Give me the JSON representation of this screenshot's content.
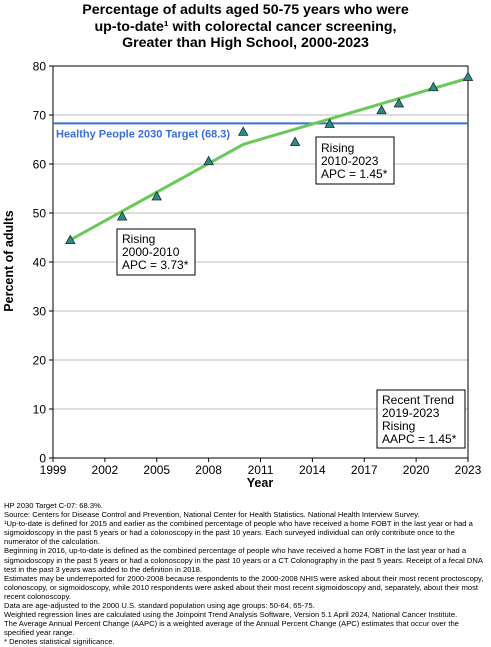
{
  "chart_data": {
    "type": "line",
    "title": [
      "Percentage of adults aged 50-75 years who were",
      "up-to-date¹ with colorectal cancer screening,",
      "Greater than High School,  2000-2023"
    ],
    "xlabel": "Year",
    "ylabel": "Percent of adults",
    "xlim": [
      1999,
      2023
    ],
    "ylim": [
      0,
      80
    ],
    "xticks": [
      1999,
      2002,
      2005,
      2008,
      2011,
      2014,
      2017,
      2020,
      2023
    ],
    "yticks": [
      0,
      10,
      20,
      30,
      40,
      50,
      60,
      70,
      80
    ],
    "grid": true,
    "observed": {
      "x": [
        2000,
        2003,
        2005,
        2008,
        2010,
        2013,
        2015,
        2018,
        2019,
        2021,
        2023
      ],
      "y": [
        44.5,
        49.3,
        53.4,
        60.6,
        66.6,
        64.5,
        68.2,
        71.0,
        72.4,
        75.7,
        77.8
      ]
    },
    "trend": {
      "x": [
        2000,
        2010,
        2023
      ],
      "y": [
        44.5,
        64.0,
        77.5
      ]
    },
    "target": {
      "value": 68.3,
      "label": "Healthy People 2030 Target (68.3)"
    },
    "annotations": [
      {
        "lines": [
          "Rising",
          "2000-2010",
          "APC =  3.73*"
        ]
      },
      {
        "lines": [
          "Rising",
          "2010-2023",
          "APC =  1.45*"
        ]
      },
      {
        "lines": [
          "Recent Trend",
          "2019-2023",
          "Rising",
          "AAPC =  1.45*"
        ]
      }
    ],
    "colors": {
      "trend": "#6ac95a",
      "target": "#3a6fd8",
      "marker_fill": "#2e8b84",
      "grid": "#bdbdbd"
    }
  },
  "footnotes": [
    "HP 2030 Target C-07: 68.3%.",
    "Source: Centers for Disease Control and Prevention, National Center for Health Statistics. National Health Interview Survey.",
    "¹Up-to-date is defined for 2015 and earlier as the combined percentage of people who have received a home FOBT in the last year or had a sigmoidoscopy in the past 5 years or had a colonoscopy in the past 10 years. Each surveyed individual can only contribute once to the numerator of the calculation.",
    "Beginning in 2016, up-to-date is defined as the combined percentage of people who have received a home FOBT in the last year or had a sigmoidoscopy in the past 5 years or had a colonoscopy in the past 10 years or a CT Colonography in the past 5 years. Receipt of a fecal DNA test in the past 3 years was added to the definition in 2018.",
    "Estimates may be underreported for 2000-2008 because respondents to the 2000-2008 NHIS were asked about their most recent proctoscopy, colonoscopy, or sigmoidoscopy, while 2010 respondents were asked about their most recent sigmoidoscopy and, separately, about their most recent colonoscopy.",
    "Data are age-adjusted to the 2000 U.S. standard population using age groups: 50-64, 65-75.",
    "Weighted regression lines are calculated using the Joinpoint Trend Analysis Software, Version 5.1 April 2024, National Cancer Institute.",
    "The Average Annual Percent Change (AAPC) is a weighted average of the Annual Percent Change (APC) estimates that occur over the specified year range.",
    "* Denotes statistical significance."
  ]
}
